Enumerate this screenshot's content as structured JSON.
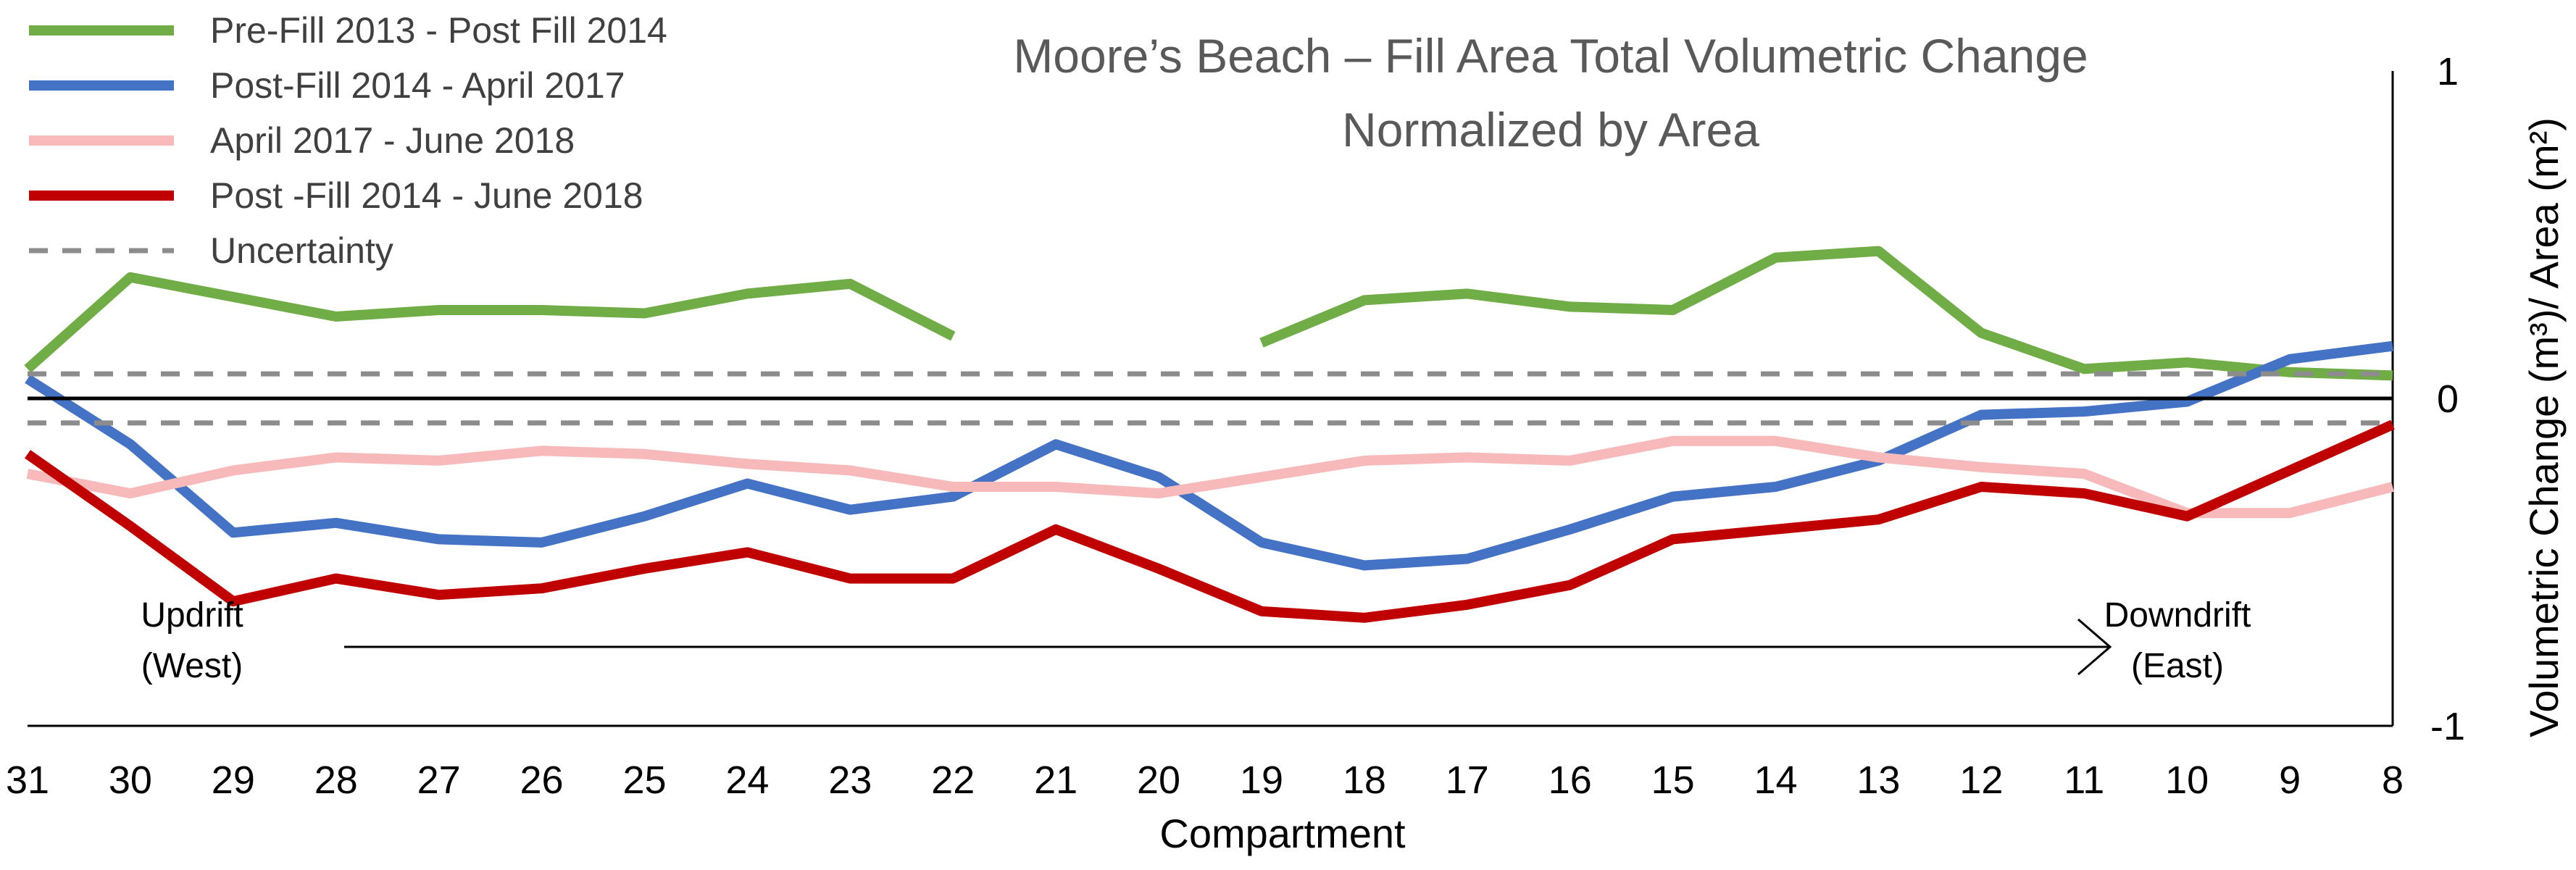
{
  "chart_data": {
    "type": "line",
    "title_lines": [
      "Moore’s Beach – Fill Area Total Volumetric Change",
      "Normalized by Area"
    ],
    "xlabel": "Compartment",
    "ylabel": "Volumetric Change (m³)/ Area (m²)",
    "categories": [
      "31",
      "30",
      "29",
      "28",
      "27",
      "26",
      "25",
      "24",
      "23",
      "22",
      "21",
      "20",
      "19",
      "18",
      "17",
      "16",
      "15",
      "14",
      "13",
      "12",
      "11",
      "10",
      "9",
      "8"
    ],
    "ylim": [
      -1,
      1
    ],
    "yticks": [
      "1",
      "0",
      "-1"
    ],
    "ytick_values": [
      1,
      0,
      -1
    ],
    "legend_position": "top-left",
    "series": [
      {
        "name": "Pre-Fill 2013 - Post Fill 2014",
        "color": "#70ad47",
        "dashed": false,
        "values": [
          0.09,
          0.37,
          0.31,
          0.25,
          0.27,
          0.27,
          0.26,
          0.32,
          0.35,
          0.19,
          null,
          null,
          0.17,
          0.3,
          0.32,
          0.28,
          0.27,
          0.43,
          0.45,
          0.2,
          0.09,
          0.11,
          0.08,
          0.07
        ]
      },
      {
        "name": "Post-Fill 2014 - April 2017",
        "color": "#4472c4",
        "dashed": false,
        "values": [
          0.06,
          -0.14,
          -0.41,
          -0.38,
          -0.43,
          -0.44,
          -0.36,
          -0.26,
          -0.34,
          -0.3,
          -0.14,
          -0.24,
          -0.44,
          -0.51,
          -0.49,
          -0.4,
          -0.3,
          -0.27,
          -0.19,
          -0.05,
          -0.04,
          -0.01,
          0.12,
          0.16
        ]
      },
      {
        "name": "April 2017 - June 2018",
        "color": "#f7b9b9",
        "dashed": false,
        "values": [
          -0.23,
          -0.29,
          -0.22,
          -0.18,
          -0.19,
          -0.16,
          -0.17,
          -0.2,
          -0.22,
          -0.27,
          -0.27,
          -0.29,
          -0.24,
          -0.19,
          -0.18,
          -0.19,
          -0.13,
          -0.13,
          -0.18,
          -0.21,
          -0.23,
          -0.35,
          -0.35,
          -0.27
        ]
      },
      {
        "name": "Post -Fill 2014 - June 2018",
        "color": "#c00000",
        "dashed": false,
        "values": [
          -0.17,
          -0.39,
          -0.62,
          -0.55,
          -0.6,
          -0.58,
          -0.52,
          -0.47,
          -0.55,
          -0.55,
          -0.4,
          -0.52,
          -0.65,
          -0.67,
          -0.63,
          -0.57,
          -0.43,
          -0.4,
          -0.37,
          -0.27,
          -0.29,
          -0.36,
          -0.22,
          -0.08
        ]
      },
      {
        "name": "Uncertainty",
        "color": "#8c8c8c",
        "dashed": true,
        "bounds": [
          0.075,
          -0.075
        ]
      }
    ],
    "annotations": {
      "updrift": [
        "Updrift",
        "(West)"
      ],
      "downdrift": [
        "Downdrift",
        "(East)"
      ]
    }
  }
}
